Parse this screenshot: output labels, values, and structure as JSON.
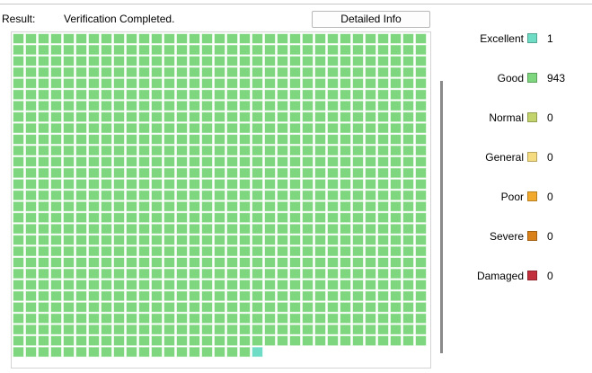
{
  "result_label": "Result:",
  "status": "Verification Completed.",
  "button": "Detailed Info",
  "legend": [
    {
      "name": "Excellent",
      "color": "#6fdcc6",
      "count": 1
    },
    {
      "name": "Good",
      "color": "#7ed67e",
      "count": 943
    },
    {
      "name": "Normal",
      "color": "#c3d46c",
      "count": 0
    },
    {
      "name": "General",
      "color": "#f6dc80",
      "count": 0
    },
    {
      "name": "Poor",
      "color": "#f2aa2e",
      "count": 0
    },
    {
      "name": "Severe",
      "color": "#d9821c",
      "count": 0
    },
    {
      "name": "Damaged",
      "color": "#c1303c",
      "count": 0
    }
  ]
}
